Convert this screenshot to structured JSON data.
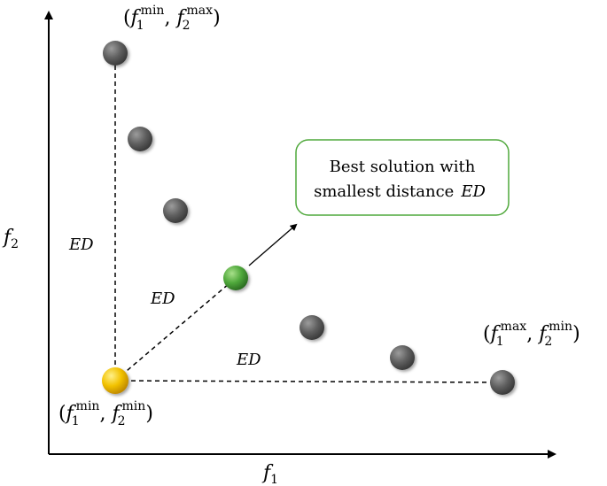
{
  "axes": {
    "x_label": "f",
    "x_sub": "1",
    "y_label": "f",
    "y_sub": "2"
  },
  "points": {
    "top_left": {
      "color": "#5f5f5f",
      "label": {
        "a_sub": "1",
        "a_sup": "min",
        "b_sub": "2",
        "b_sup": "max"
      }
    },
    "ideal": {
      "color": "#f2c200",
      "label": {
        "a_sub": "1",
        "a_sup": "min",
        "b_sub": "2",
        "b_sup": "min"
      }
    },
    "best": {
      "color": "#4fa83b"
    },
    "bottom_right": {
      "color": "#5f5f5f",
      "label": {
        "a_sub": "1",
        "a_sup": "max",
        "b_sub": "2",
        "b_sup": "min"
      }
    }
  },
  "ed_labels": {
    "vertical": "ED",
    "diagonal": "ED",
    "horizontal": "ED"
  },
  "callout": {
    "line1": "Best solution with",
    "line2": "smallest distance",
    "line2_ital": "ED",
    "border_color": "#4fa83b"
  }
}
